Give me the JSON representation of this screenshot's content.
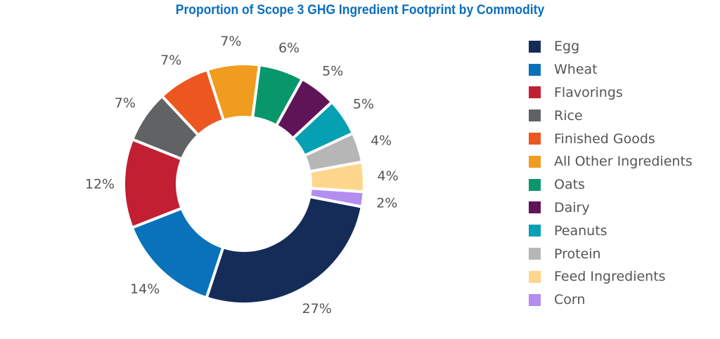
{
  "chart_data": {
    "type": "pie",
    "variant": "donut",
    "title": "Proportion of Scope 3 GHG Ingredient Footprint by Commodity",
    "legend_position": "right",
    "unit": "%",
    "slices": [
      {
        "label": "Egg",
        "value": 27,
        "data_label": "27%",
        "color": "#142c57"
      },
      {
        "label": "Wheat",
        "value": 14,
        "data_label": "14%",
        "color": "#0a71bb"
      },
      {
        "label": "Flavorings",
        "value": 12,
        "data_label": "12%",
        "color": "#c21f32"
      },
      {
        "label": "Rice",
        "value": 7,
        "data_label": "7%",
        "color": "#616264"
      },
      {
        "label": "Finished Goods",
        "value": 7,
        "data_label": "7%",
        "color": "#ec561f"
      },
      {
        "label": "All Other Ingredients",
        "value": 7,
        "data_label": "7%",
        "color": "#f09c1f"
      },
      {
        "label": "Oats",
        "value": 6,
        "data_label": "6%",
        "color": "#08976b"
      },
      {
        "label": "Dairy",
        "value": 5,
        "data_label": "5%",
        "color": "#5f1458"
      },
      {
        "label": "Peanuts",
        "value": 5,
        "data_label": "5%",
        "color": "#05a1b2"
      },
      {
        "label": "Protein",
        "value": 4,
        "data_label": "4%",
        "color": "#b6b6b6"
      },
      {
        "label": "Feed Ingredients",
        "value": 4,
        "data_label": "4%",
        "color": "#fed68c"
      },
      {
        "label": "Corn",
        "value": 2,
        "data_label": "2%",
        "color": "#b48df0"
      }
    ]
  }
}
